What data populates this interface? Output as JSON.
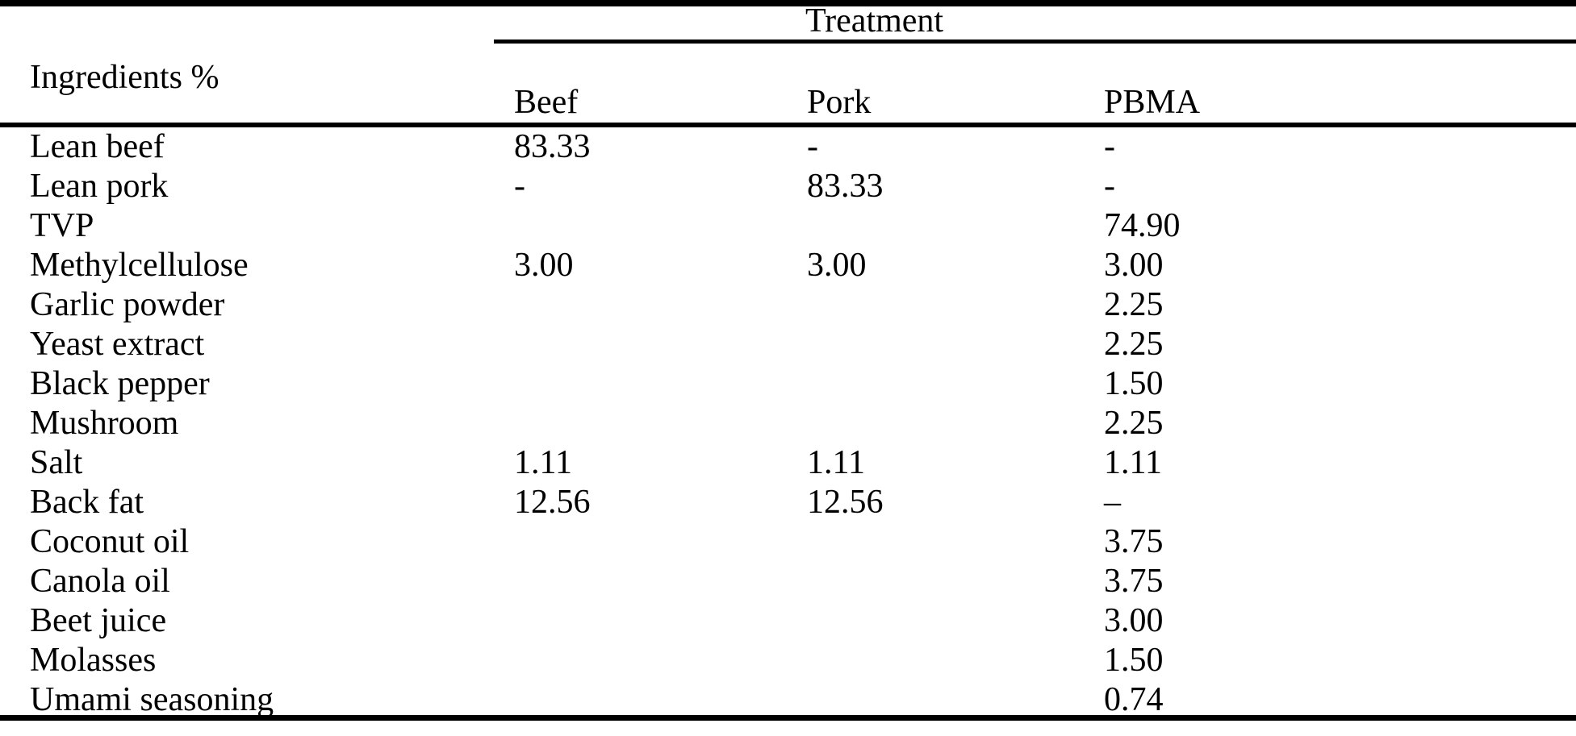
{
  "table": {
    "treatment_label": "Treatment",
    "ingredients_label": "Ingredients %",
    "columns": [
      "Beef",
      "Pork",
      "PBMA"
    ],
    "rows": [
      {
        "ingredient": "Lean beef",
        "beef": "83.33",
        "pork": "-",
        "pbma": "-"
      },
      {
        "ingredient": "Lean pork",
        "beef": "-",
        "pork": "83.33",
        "pbma": "-"
      },
      {
        "ingredient": "TVP",
        "beef": "",
        "pork": "",
        "pbma": "74.90"
      },
      {
        "ingredient": "Methylcellulose",
        "beef": "3.00",
        "pork": "3.00",
        "pbma": "3.00"
      },
      {
        "ingredient": "Garlic powder",
        "beef": "",
        "pork": "",
        "pbma": "2.25"
      },
      {
        "ingredient": "Yeast extract",
        "beef": "",
        "pork": "",
        "pbma": "2.25"
      },
      {
        "ingredient": "Black pepper",
        "beef": "",
        "pork": "",
        "pbma": "1.50"
      },
      {
        "ingredient": "Mushroom",
        "beef": "",
        "pork": "",
        "pbma": "2.25"
      },
      {
        "ingredient": "Salt",
        "beef": "1.11",
        "pork": "1.11",
        "pbma": "1.11"
      },
      {
        "ingredient": "Back fat",
        "beef": "12.56",
        "pork": "12.56",
        "pbma": "–"
      },
      {
        "ingredient": "Coconut oil",
        "beef": "",
        "pork": "",
        "pbma": "3.75"
      },
      {
        "ingredient": "Canola oil",
        "beef": "",
        "pork": "",
        "pbma": "3.75"
      },
      {
        "ingredient": "Beet juice",
        "beef": "",
        "pork": "",
        "pbma": "3.00"
      },
      {
        "ingredient": "Molasses",
        "beef": "",
        "pork": "",
        "pbma": "1.50"
      },
      {
        "ingredient": "Umami seasoning",
        "beef": "",
        "pork": "",
        "pbma": "0.74"
      }
    ]
  },
  "colors": {
    "background": "#ffffff",
    "text": "#000000",
    "rule": "#000000"
  },
  "chart_data": {
    "type": "table",
    "title": "Treatment",
    "row_header_label": "Ingredients %",
    "columns": [
      "Beef",
      "Pork",
      "PBMA"
    ],
    "rows": [
      [
        "Lean beef",
        "83.33",
        "-",
        "-"
      ],
      [
        "Lean pork",
        "-",
        "83.33",
        "-"
      ],
      [
        "TVP",
        "",
        "",
        "74.90"
      ],
      [
        "Methylcellulose",
        "3.00",
        "3.00",
        "3.00"
      ],
      [
        "Garlic powder",
        "",
        "",
        "2.25"
      ],
      [
        "Yeast extract",
        "",
        "",
        "2.25"
      ],
      [
        "Black pepper",
        "",
        "",
        "1.50"
      ],
      [
        "Mushroom",
        "",
        "",
        "2.25"
      ],
      [
        "Salt",
        "1.11",
        "1.11",
        "1.11"
      ],
      [
        "Back fat",
        "12.56",
        "12.56",
        "–"
      ],
      [
        "Coconut oil",
        "",
        "",
        "3.75"
      ],
      [
        "Canola oil",
        "",
        "",
        "3.75"
      ],
      [
        "Beet juice",
        "",
        "",
        "3.00"
      ],
      [
        "Molasses",
        "",
        "",
        "1.50"
      ],
      [
        "Umami seasoning",
        "",
        "",
        "0.74"
      ]
    ]
  }
}
